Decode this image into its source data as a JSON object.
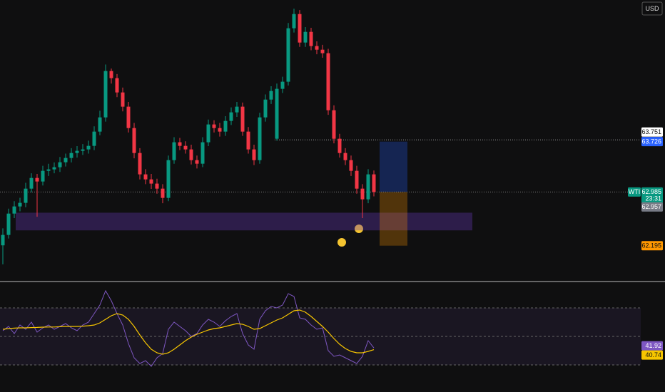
{
  "currency": "USD",
  "chart_data": [
    {
      "type": "candlestick",
      "symbol": "WTI",
      "countdown": "23:31",
      "ylim": [
        61.72,
        65.62
      ],
      "up_color": "#089981",
      "down_color": "#f23645",
      "open": [
        62.2,
        62.353,
        62.667,
        62.772,
        62.825,
        63.034,
        63.191,
        63.139,
        63.296,
        63.317,
        63.349,
        63.422,
        63.485,
        63.558,
        63.59,
        63.611,
        63.663,
        63.873,
        64.082,
        64.764,
        64.659,
        64.449,
        64.24,
        63.925,
        63.558,
        63.244,
        63.17,
        63.108,
        63.034,
        62.898,
        63.453,
        63.716,
        63.663,
        63.611,
        63.453,
        63.401,
        63.716,
        63.978,
        63.925,
        63.873,
        64.03,
        64.156,
        64.24,
        63.873,
        63.611,
        63.453,
        64.082,
        64.344,
        63.768,
        64.502,
        64.607,
        65.393,
        65.602,
        65.183,
        65.34,
        65.131,
        65.078,
        65.026,
        64.187,
        63.768,
        63.558,
        63.453,
        63.296,
        63.034,
        62.877,
        63.244
      ],
      "high": [
        62.45,
        62.74,
        62.85,
        62.9,
        63.12,
        63.26,
        63.25,
        63.37,
        63.4,
        63.42,
        63.5,
        63.55,
        63.63,
        63.66,
        63.69,
        63.74,
        63.95,
        64.18,
        64.86,
        64.8,
        64.72,
        64.52,
        64.31,
        64.0,
        63.63,
        63.32,
        63.25,
        63.18,
        63.1,
        63.52,
        63.79,
        63.78,
        63.73,
        63.68,
        63.52,
        63.79,
        64.05,
        64.04,
        64.0,
        64.1,
        64.23,
        64.31,
        64.3,
        63.94,
        63.68,
        64.15,
        64.42,
        64.54,
        64.58,
        64.68,
        65.47,
        65.68,
        65.66,
        65.41,
        65.4,
        65.2,
        65.15,
        65.09,
        64.26,
        63.84,
        63.63,
        63.52,
        63.37,
        63.1,
        63.32,
        63.3
      ],
      "low": [
        61.92,
        62.3,
        62.6,
        62.7,
        62.76,
        62.98,
        62.62,
        63.08,
        63.22,
        63.26,
        63.28,
        63.36,
        63.42,
        63.49,
        63.53,
        63.55,
        63.6,
        63.82,
        64.02,
        64.58,
        64.38,
        64.17,
        63.86,
        63.48,
        63.17,
        63.1,
        63.03,
        62.96,
        62.82,
        62.85,
        63.4,
        63.6,
        63.55,
        63.39,
        63.33,
        63.35,
        63.66,
        63.86,
        63.8,
        63.81,
        63.97,
        64.09,
        63.81,
        63.55,
        63.38,
        63.4,
        64.02,
        64.28,
        63.74,
        64.44,
        64.55,
        65.33,
        65.12,
        65.12,
        65.07,
        65.01,
        64.96,
        64.12,
        63.7,
        63.49,
        63.38,
        63.22,
        62.96,
        62.6,
        62.82,
        62.92
      ],
      "close": [
        62.353,
        62.667,
        62.772,
        62.825,
        63.034,
        63.191,
        63.139,
        63.296,
        63.317,
        63.349,
        63.422,
        63.485,
        63.558,
        63.59,
        63.611,
        63.663,
        63.873,
        64.082,
        64.764,
        64.659,
        64.449,
        64.24,
        63.925,
        63.558,
        63.244,
        63.17,
        63.108,
        63.034,
        62.898,
        63.453,
        63.716,
        63.663,
        63.611,
        63.453,
        63.401,
        63.716,
        63.978,
        63.925,
        63.873,
        64.03,
        64.156,
        64.24,
        63.873,
        63.611,
        63.453,
        64.082,
        64.344,
        64.47,
        64.502,
        64.607,
        65.393,
        65.602,
        65.183,
        65.34,
        65.131,
        65.078,
        65.026,
        64.187,
        63.768,
        63.558,
        63.453,
        63.296,
        63.034,
        62.877,
        63.244,
        62.985
      ],
      "level": 63.751,
      "zone": [
        62.42,
        62.68
      ],
      "position": {
        "target": 63.726,
        "stop": 62.195
      },
      "marker_price": 62.957
    },
    {
      "type": "line",
      "ylim": [
        26,
        86
      ],
      "levels": [
        30,
        50,
        70
      ],
      "series": [
        {
          "color": "#7e57c2",
          "values": [
            54,
            57,
            52,
            58,
            55,
            60,
            53,
            56,
            58,
            55,
            57,
            59,
            56,
            54,
            58,
            60,
            66,
            72,
            82,
            75,
            66,
            58,
            45,
            35,
            31,
            33,
            29,
            35,
            38,
            55,
            60,
            57,
            54,
            50,
            52,
            58,
            62,
            60,
            57,
            61,
            64,
            66,
            52,
            44,
            41,
            62,
            68,
            71,
            70,
            72,
            80,
            78,
            63,
            62,
            58,
            55,
            56,
            40,
            36,
            37,
            35,
            33,
            31,
            36,
            47,
            41.92
          ]
        },
        {
          "color": "#f7c600",
          "values": [
            55,
            55.5,
            55.8,
            56,
            56,
            56.2,
            56.3,
            56.5,
            56.6,
            56.6,
            56.8,
            57,
            57,
            57,
            57.2,
            57.5,
            58,
            59.5,
            62,
            64.5,
            66,
            65,
            62,
            57,
            51,
            45.5,
            41,
            38.5,
            37.5,
            38.5,
            41,
            44,
            47,
            49.5,
            51.5,
            53,
            54.5,
            55.5,
            56,
            57,
            58,
            59,
            58.5,
            57,
            55,
            55.5,
            57.5,
            59.5,
            61.5,
            63,
            65.5,
            68,
            68.5,
            67,
            64,
            60.5,
            57,
            53,
            48.5,
            44.5,
            41.5,
            39.5,
            38.5,
            38.5,
            39.5,
            40.74
          ]
        }
      ]
    }
  ]
}
